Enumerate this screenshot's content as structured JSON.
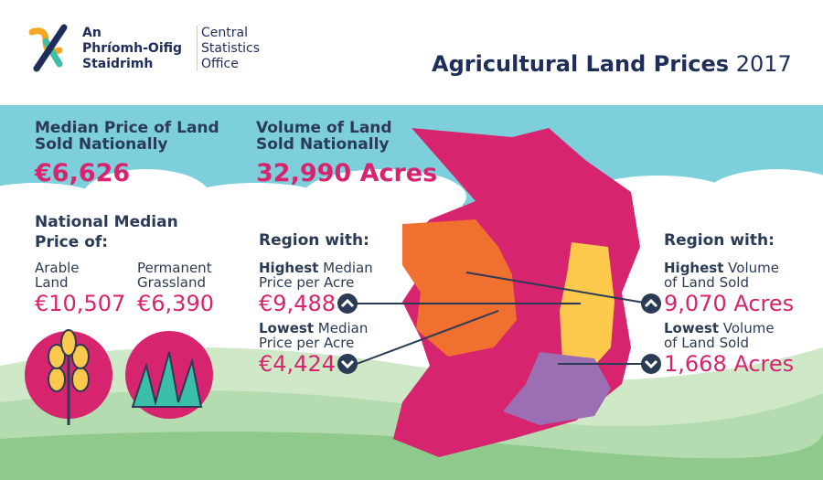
{
  "header": {
    "logo_irish": [
      "An",
      "Phríomh-Oifig",
      "Staidrimh"
    ],
    "logo_english": [
      "Central",
      "Statistics",
      "Office"
    ],
    "title": "Agricultural Land Prices",
    "year": "2017"
  },
  "national": {
    "price": {
      "label": "Median Price of Land Sold Nationally",
      "value": "€6,626"
    },
    "volume": {
      "label": "Volume of Land Sold Nationally",
      "value": "32,990 Acres"
    }
  },
  "median_by_type": {
    "heading": "National Median Price of:",
    "items": [
      {
        "label": "Arable Land",
        "value": "€10,507"
      },
      {
        "label": "Permanent Grassland",
        "value": "€6,390"
      }
    ]
  },
  "price_regions": {
    "heading": "Region with:",
    "highest": {
      "emphasis": "Highest",
      "label": "Median Price per Acre",
      "value": "€9,488"
    },
    "lowest": {
      "emphasis": "Lowest",
      "label": "Median Price per Acre",
      "value": "€4,424"
    }
  },
  "volume_regions": {
    "heading": "Region with:",
    "highest": {
      "emphasis": "Highest",
      "label": "Volume of Land Sold",
      "value": "9,070 Acres"
    },
    "lowest": {
      "emphasis": "Lowest",
      "label": "Volume of Land Sold",
      "value": "1,668 Acres"
    }
  }
}
